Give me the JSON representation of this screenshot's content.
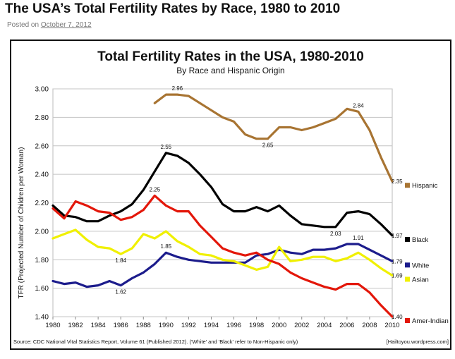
{
  "post": {
    "title": "The USA’s Total Fertility Rates by Race, 1980 to 2010",
    "posted_prefix": "Posted on",
    "posted_date": "October 7, 2012"
  },
  "chart_data": {
    "type": "line",
    "title": "Total Fertility Rates in the USA, 1980-2010",
    "subtitle": "By Race and Hispanic Origin",
    "ylabel": "TFR (Projected Number of Children per Woman)",
    "xlabel": "",
    "ylim": [
      1.4,
      3.0
    ],
    "xlim": [
      1980,
      2010
    ],
    "grid": true,
    "legend": "right",
    "x_ticks": [
      "1980",
      "1982",
      "1984",
      "1986",
      "1988",
      "1990",
      "1992",
      "1994",
      "1996",
      "1998",
      "2000",
      "2002",
      "2004",
      "2006",
      "2008",
      "2010"
    ],
    "y_ticks": [
      "1.40",
      "1.60",
      "1.80",
      "2.00",
      "2.20",
      "2.40",
      "2.60",
      "2.80",
      "3.00"
    ],
    "x": [
      1980,
      1981,
      1982,
      1983,
      1984,
      1985,
      1986,
      1987,
      1988,
      1989,
      1990,
      1991,
      1992,
      1993,
      1994,
      1995,
      1996,
      1997,
      1998,
      1999,
      2000,
      2001,
      2002,
      2003,
      2004,
      2005,
      2006,
      2007,
      2008,
      2009,
      2010
    ],
    "series": [
      {
        "name": "Hispanic",
        "color": "#a87432",
        "values": [
          null,
          null,
          null,
          null,
          null,
          null,
          null,
          null,
          null,
          2.9,
          2.96,
          2.96,
          2.95,
          2.9,
          2.85,
          2.8,
          2.77,
          2.68,
          2.65,
          2.65,
          2.73,
          2.73,
          2.71,
          2.73,
          2.76,
          2.79,
          2.86,
          2.84,
          2.71,
          2.52,
          2.35
        ]
      },
      {
        "name": "Black",
        "color": "#000000",
        "values": [
          2.18,
          2.11,
          2.1,
          2.07,
          2.07,
          2.11,
          2.14,
          2.19,
          2.29,
          2.42,
          2.55,
          2.53,
          2.48,
          2.4,
          2.31,
          2.19,
          2.14,
          2.14,
          2.17,
          2.14,
          2.18,
          2.11,
          2.05,
          2.04,
          2.03,
          2.03,
          2.13,
          2.14,
          2.12,
          2.05,
          1.97
        ]
      },
      {
        "name": "White",
        "color": "#1c1c8c",
        "values": [
          1.65,
          1.63,
          1.64,
          1.61,
          1.62,
          1.65,
          1.62,
          1.67,
          1.71,
          1.77,
          1.85,
          1.82,
          1.8,
          1.79,
          1.78,
          1.78,
          1.78,
          1.78,
          1.83,
          1.84,
          1.87,
          1.85,
          1.84,
          1.87,
          1.87,
          1.88,
          1.91,
          1.91,
          1.87,
          1.83,
          1.79
        ]
      },
      {
        "name": "Asian",
        "color": "#f0f000",
        "values": [
          1.95,
          1.98,
          2.01,
          1.94,
          1.89,
          1.88,
          1.84,
          1.88,
          1.98,
          1.95,
          2.0,
          1.93,
          1.89,
          1.84,
          1.83,
          1.8,
          1.79,
          1.76,
          1.73,
          1.75,
          1.89,
          1.79,
          1.8,
          1.82,
          1.82,
          1.79,
          1.81,
          1.85,
          1.8,
          1.74,
          1.69
        ]
      },
      {
        "name": "Amer-Indian",
        "color": "#e3170a",
        "values": [
          2.16,
          2.09,
          2.21,
          2.18,
          2.14,
          2.13,
          2.08,
          2.1,
          2.15,
          2.25,
          2.18,
          2.14,
          2.14,
          2.04,
          1.96,
          1.88,
          1.85,
          1.83,
          1.85,
          1.8,
          1.77,
          1.71,
          1.67,
          1.64,
          1.61,
          1.59,
          1.63,
          1.63,
          1.57,
          1.48,
          1.4
        ]
      }
    ],
    "annotations": [
      {
        "text": "2.96",
        "x": 1991,
        "y": 2.96
      },
      {
        "text": "2.84",
        "x": 2007,
        "y": 2.84
      },
      {
        "text": "2.65",
        "x": 1999,
        "y": 2.65
      },
      {
        "text": "2.35",
        "x": 2010,
        "y": 2.35
      },
      {
        "text": "2.55",
        "x": 1990,
        "y": 2.55
      },
      {
        "text": "2.03",
        "x": 2005,
        "y": 2.03
      },
      {
        "text": "1.97",
        "x": 2010,
        "y": 1.97
      },
      {
        "text": "2.25",
        "x": 1989,
        "y": 2.25
      },
      {
        "text": "1.84",
        "x": 1986,
        "y": 1.84
      },
      {
        "text": "1.85",
        "x": 1990,
        "y": 1.85
      },
      {
        "text": "1.91",
        "x": 2007,
        "y": 1.91
      },
      {
        "text": "1.79",
        "x": 2010,
        "y": 1.79
      },
      {
        "text": "1.69",
        "x": 2010,
        "y": 1.69
      },
      {
        "text": "1.62",
        "x": 1986,
        "y": 1.62
      },
      {
        "text": "1.40",
        "x": 2010,
        "y": 1.4
      }
    ],
    "source": "Source: CDC National Vital Statistics Report, Volume 61 (Published 2012). ('White' and 'Black' refer to Non-Hispanic only)",
    "credit": "[Hailtoyou.wordpress.com]"
  }
}
